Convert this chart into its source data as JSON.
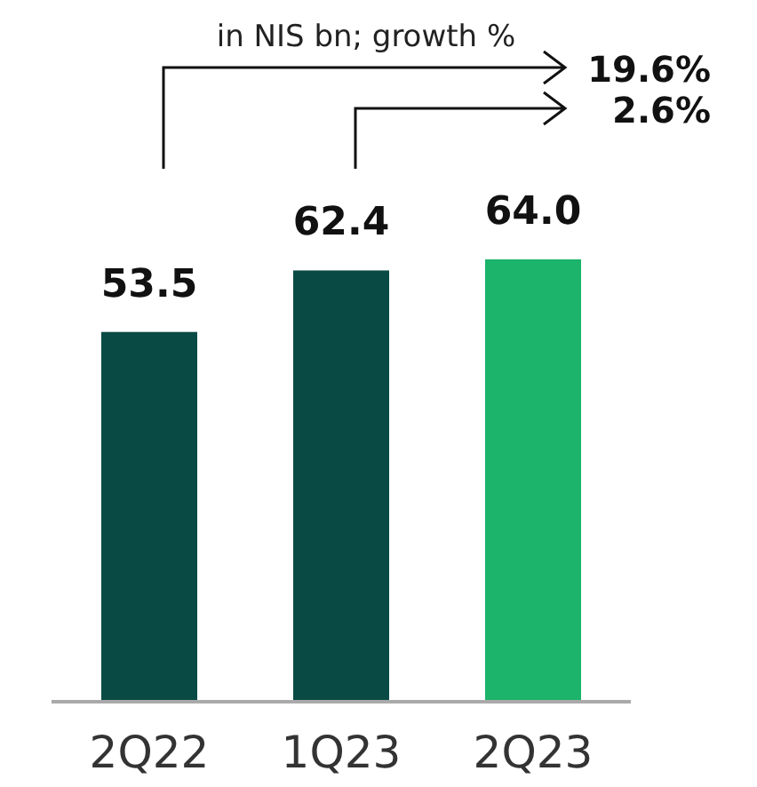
{
  "chart_data": {
    "type": "bar",
    "subtitle": "in NIS bn; growth %",
    "categories": [
      "2Q22",
      "1Q23",
      "2Q23"
    ],
    "values": [
      53.5,
      62.4,
      64.0
    ],
    "colors": [
      "#0a4a44",
      "#0a4a44",
      "#1cb36b"
    ],
    "value_labels": [
      "53.5",
      "62.4",
      "64.0"
    ],
    "annotations": [
      "19.6%",
      "2.6%"
    ]
  }
}
